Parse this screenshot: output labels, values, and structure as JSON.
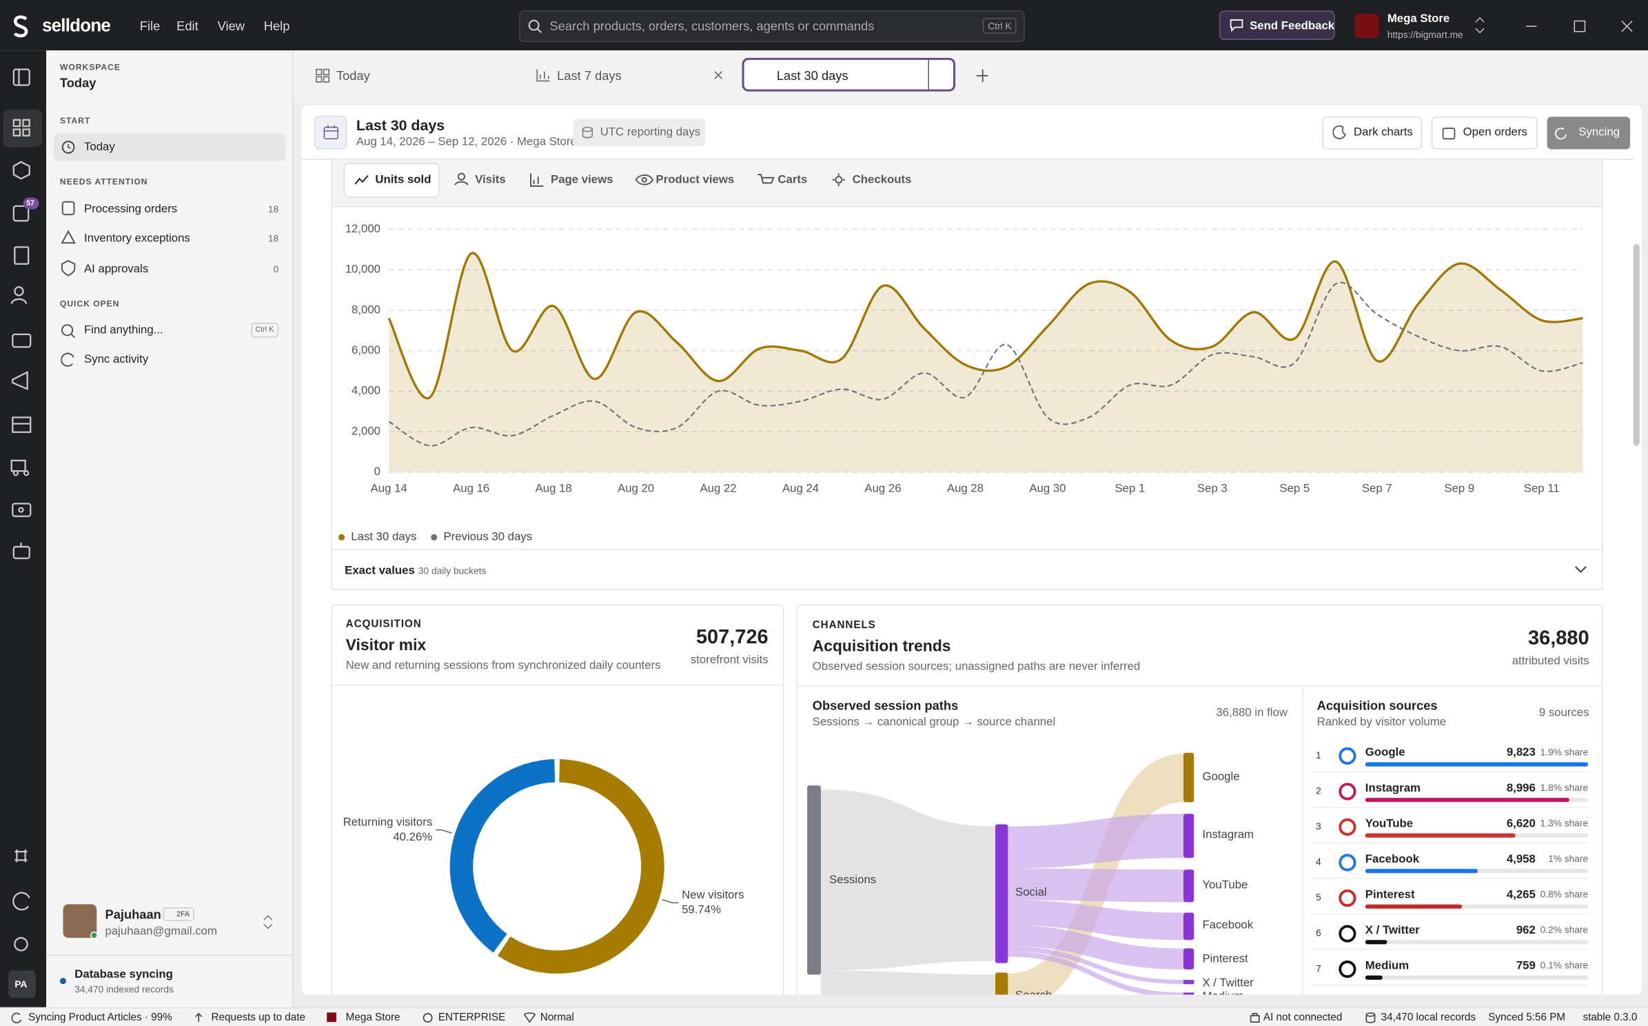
{
  "app": {
    "brand": "selldone",
    "menu": [
      "File",
      "Edit",
      "View",
      "Help"
    ],
    "search_placeholder": "Search products, orders, customers, agents or commands",
    "search_shortcut": "Ctrl K",
    "feedback": "Send Feedback",
    "store_name": "Mega Store",
    "store_url": "https://bigmart.me",
    "rail_badge": "57",
    "avatar": "PA"
  },
  "sidebar": {
    "workspace_label": "WORKSPACE",
    "workspace": "Today",
    "start_label": "START",
    "start_item": "Today",
    "attention_label": "NEEDS ATTENTION",
    "attention": [
      {
        "label": "Processing orders",
        "count": 18
      },
      {
        "label": "Inventory exceptions",
        "count": 18
      },
      {
        "label": "AI approvals",
        "count": 0
      }
    ],
    "quick_label": "QUICK OPEN",
    "find": "Find anything...",
    "find_shortcut": "Ctrl K",
    "sync": "Sync activity",
    "user": {
      "name": "Pajuhaan",
      "badge": "2FA",
      "email": "pajuhaan@gmail.com"
    },
    "status": {
      "title": "Database syncing",
      "detail": "34,470 indexed records"
    }
  },
  "tabs": [
    "Today",
    "Last 7 days",
    "Last 30 days"
  ],
  "report": {
    "title": "Last 30 days",
    "subtitle": "Aug 14, 2026 – Sep 12, 2026 · Mega Store",
    "pill": "UTC reporting days",
    "buttons": [
      "Dark charts",
      "Open orders",
      "Syncing"
    ]
  },
  "metrics": [
    "Units sold",
    "Visits",
    "Page views",
    "Product views",
    "Carts",
    "Checkouts"
  ],
  "exact_values": {
    "title": "Exact values",
    "detail": "30 daily buckets"
  },
  "visitor_mix": {
    "kicker": "ACQUISITION",
    "title": "Visitor mix",
    "subtitle": "New and returning sessions from synchronized daily counters",
    "total": "507,726",
    "total_label": "storefront visits"
  },
  "channels": {
    "kicker": "CHANNELS",
    "title": "Acquisition trends",
    "subtitle": "Observed session sources; unassigned paths are never inferred",
    "total": "36,880",
    "total_label": "attributed visits",
    "paths": {
      "title": "Observed session paths",
      "subtitle": "Sessions → canonical group → source channel",
      "flow": "36,880 in flow",
      "source": "Sessions",
      "groups": [
        "Social",
        "Search"
      ],
      "targets": [
        "Google",
        "Instagram",
        "YouTube",
        "Facebook",
        "Pinterest",
        "X / Twitter",
        "Medium"
      ]
    },
    "sources": {
      "title": "Acquisition sources",
      "subtitle": "Ranked by visitor volume",
      "count": "9 sources"
    }
  },
  "status_bar": {
    "sync": "Syncing Product Articles · 99%",
    "requests": "Requests up to date",
    "store": "Mega Store",
    "plan": "ENTERPRISE",
    "mode": "Normal",
    "ai": "AI not connected",
    "records": "34,470 local records",
    "synced": "Synced 5:56 PM",
    "version": "stable 0.3.0"
  },
  "chart_data": [
    {
      "type": "line",
      "categories": [
        "Aug 14",
        null,
        "Aug 16",
        null,
        "Aug 18",
        null,
        "Aug 20",
        null,
        "Aug 22",
        null,
        "Aug 24",
        null,
        "Aug 26",
        null,
        "Aug 28",
        null,
        "Aug 30",
        null,
        "Sep 1",
        null,
        "Sep 3",
        null,
        "Sep 5",
        null,
        "Sep 7",
        null,
        "Sep 9",
        null,
        "Sep 11",
        null
      ],
      "series": [
        {
          "name": "Last 30 days",
          "color": "#a07800",
          "dashed": false,
          "area": true,
          "values": [
            7600,
            3700,
            10800,
            6000,
            8200,
            4600,
            7900,
            6400,
            4500,
            6100,
            6000,
            5600,
            9200,
            7100,
            5300,
            5200,
            7200,
            9300,
            8900,
            6500,
            6200,
            7900,
            6600,
            10400,
            5500,
            8300,
            10300,
            9000,
            7500,
            7600
          ]
        },
        {
          "name": "Previous 30 days",
          "color": "#707070",
          "dashed": true,
          "area": false,
          "values": [
            2500,
            1300,
            2200,
            1800,
            2800,
            3500,
            2200,
            2200,
            4000,
            3300,
            3500,
            4100,
            3600,
            4900,
            3700,
            6300,
            2700,
            2700,
            4300,
            4300,
            5800,
            5700,
            5400,
            9300,
            7800,
            6700,
            6000,
            6200,
            5000,
            5400
          ]
        }
      ],
      "ylim": [
        0,
        12000
      ],
      "yticks": [
        0,
        {
          "value": 2000,
          "label": "2,000"
        },
        {
          "value": 4000,
          "label": "4,000"
        },
        {
          "value": 6000,
          "label": "6,000"
        },
        {
          "value": 8000,
          "label": "8,000"
        },
        {
          "value": 10000,
          "label": "10,000"
        },
        {
          "value": 12000,
          "label": "12,000"
        }
      ],
      "grid": true,
      "legend": "bottom-left"
    },
    {
      "type": "pie",
      "donut": true,
      "categories": [
        "Returning visitors",
        "New visitors"
      ],
      "values": [
        40.26,
        59.74
      ],
      "value_labels": [
        "40.26%",
        "59.74%"
      ],
      "colors": [
        "#0b72c6",
        "#a67c00"
      ]
    },
    {
      "type": "bar",
      "orientation": "horizontal",
      "ranks": [
        1,
        2,
        3,
        4,
        5,
        6,
        7
      ],
      "categories": [
        "Google",
        "Instagram",
        "YouTube",
        "Facebook",
        "Pinterest",
        "X / Twitter",
        "Medium"
      ],
      "values": [
        9823,
        8996,
        6620,
        4958,
        4265,
        962,
        759
      ],
      "value_labels": [
        "9,823",
        "8,996",
        "6,620",
        "4,958",
        "4,265",
        "962",
        "759"
      ],
      "share_labels": [
        "1.9% share",
        "1.8% share",
        "1.3% share",
        "1% share",
        "0.8% share",
        "0.2% share",
        "0.1% share"
      ],
      "colors": [
        "#1a73e8",
        "#c2185b",
        "#d32f2f",
        "#1877f2",
        "#c62828",
        "#111111",
        "#111111"
      ],
      "xlim": [
        0,
        9823
      ]
    }
  ]
}
